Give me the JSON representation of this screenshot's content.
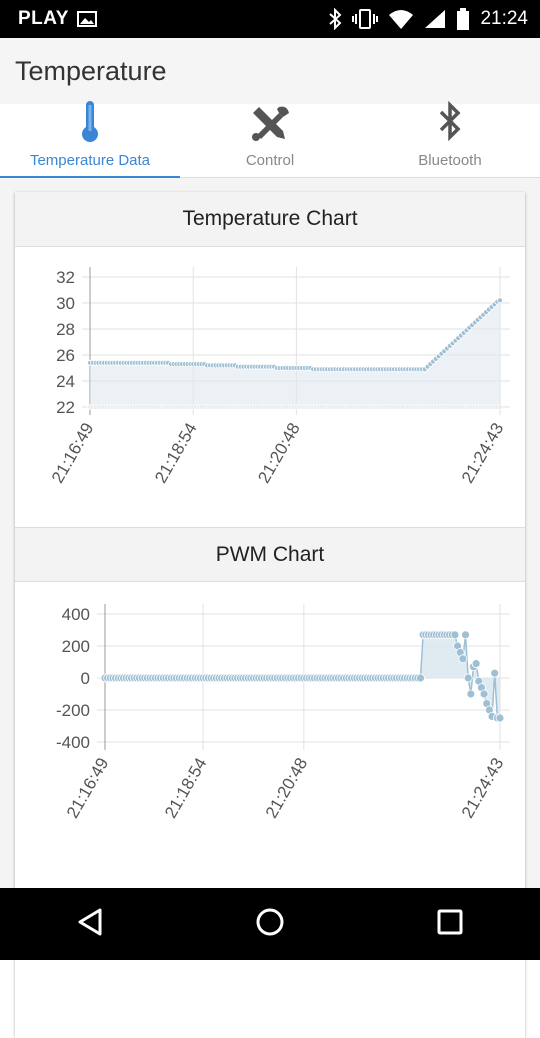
{
  "status_bar": {
    "carrier": "PLAY",
    "time": "21:24"
  },
  "app": {
    "title": "Temperature"
  },
  "tabs": [
    {
      "label": "Temperature Data",
      "icon": "thermometer-icon",
      "active": true
    },
    {
      "label": "Control",
      "icon": "tools-icon",
      "active": false
    },
    {
      "label": "Bluetooth",
      "icon": "bluetooth-icon",
      "active": false
    }
  ],
  "colors": {
    "accent": "#3a86d6",
    "series_line": "#9fbfd4",
    "series_fill": "#dde8ef"
  },
  "chart_data": [
    {
      "type": "line",
      "title": "Temperature Chart",
      "x_tick_labels": [
        "21:16:49",
        "21:18:54",
        "21:20:48",
        "21:24:43"
      ],
      "y_ticks": [
        22,
        24,
        26,
        28,
        30,
        32
      ],
      "ylim": [
        22,
        32
      ],
      "grid": true,
      "series": [
        {
          "values": [
            25.4,
            25.4,
            25.4,
            25.4,
            25.4,
            25.4,
            25.4,
            25.4,
            25.4,
            25.4,
            25.4,
            25.4,
            25.4,
            25.4,
            25.4,
            25.4,
            25.4,
            25.4,
            25.4,
            25.4,
            25.4,
            25.4,
            25.4,
            25.4,
            25.4,
            25.4,
            25.4,
            25.4,
            25.4,
            25.3,
            25.3,
            25.3,
            25.3,
            25.3,
            25.3,
            25.3,
            25.3,
            25.3,
            25.3,
            25.3,
            25.3,
            25.3,
            25.2,
            25.2,
            25.2,
            25.2,
            25.2,
            25.2,
            25.2,
            25.2,
            25.2,
            25.2,
            25.2,
            25.1,
            25.1,
            25.1,
            25.1,
            25.1,
            25.1,
            25.1,
            25.1,
            25.1,
            25.1,
            25.1,
            25.1,
            25.1,
            25.1,
            25.0,
            25.0,
            25.0,
            25.0,
            25.0,
            25.0,
            25.0,
            25.0,
            25.0,
            25.0,
            25.0,
            25.0,
            25.0,
            24.9,
            24.9,
            24.9,
            24.9,
            24.9,
            24.9,
            24.9,
            24.9,
            24.9,
            24.9,
            24.9,
            24.9,
            24.9,
            24.9,
            24.9,
            24.9,
            24.9,
            24.9,
            24.9,
            24.9,
            24.9,
            24.9,
            24.9,
            24.9,
            24.9,
            24.9,
            24.9,
            24.9,
            24.9,
            24.9,
            24.9,
            24.9,
            24.9,
            24.9,
            24.9,
            24.9,
            24.9,
            24.9,
            24.9,
            24.9,
            24.9,
            25.1,
            25.3,
            25.5,
            25.7,
            25.9,
            26.1,
            26.3,
            26.5,
            26.7,
            26.9,
            27.1,
            27.3,
            27.5,
            27.7,
            27.9,
            28.1,
            28.3,
            28.5,
            28.7,
            28.9,
            29.1,
            29.3,
            29.5,
            29.7,
            29.9,
            30.1,
            30.2
          ]
        }
      ]
    },
    {
      "type": "line",
      "title": "PWM Chart",
      "x_tick_labels": [
        "21:16:49",
        "21:18:54",
        "21:20:48",
        "21:24:43"
      ],
      "y_ticks": [
        -400,
        -200,
        0,
        200,
        400
      ],
      "ylim": [
        -400,
        400
      ],
      "grid": true,
      "series": [
        {
          "values": [
            0,
            0,
            0,
            0,
            0,
            0,
            0,
            0,
            0,
            0,
            0,
            0,
            0,
            0,
            0,
            0,
            0,
            0,
            0,
            0,
            0,
            0,
            0,
            0,
            0,
            0,
            0,
            0,
            0,
            0,
            0,
            0,
            0,
            0,
            0,
            0,
            0,
            0,
            0,
            0,
            0,
            0,
            0,
            0,
            0,
            0,
            0,
            0,
            0,
            0,
            0,
            0,
            0,
            0,
            0,
            0,
            0,
            0,
            0,
            0,
            0,
            0,
            0,
            0,
            0,
            0,
            0,
            0,
            0,
            0,
            0,
            0,
            0,
            0,
            0,
            0,
            0,
            0,
            0,
            0,
            0,
            0,
            0,
            0,
            0,
            0,
            0,
            0,
            0,
            0,
            0,
            0,
            0,
            0,
            0,
            0,
            0,
            0,
            0,
            0,
            0,
            0,
            0,
            0,
            0,
            0,
            0,
            0,
            0,
            0,
            0,
            0,
            0,
            0,
            0,
            0,
            0,
            0,
            0,
            0,
            270,
            270,
            270,
            270,
            270,
            270,
            270,
            270,
            270,
            270,
            270,
            270,
            270,
            200,
            160,
            120,
            270,
            0,
            -100,
            70,
            90,
            -20,
            -60,
            -100,
            -160,
            -200,
            -240,
            30,
            -250,
            -250
          ]
        }
      ]
    }
  ],
  "nav": {
    "back": "back-icon",
    "home": "home-icon",
    "recents": "recents-icon"
  }
}
